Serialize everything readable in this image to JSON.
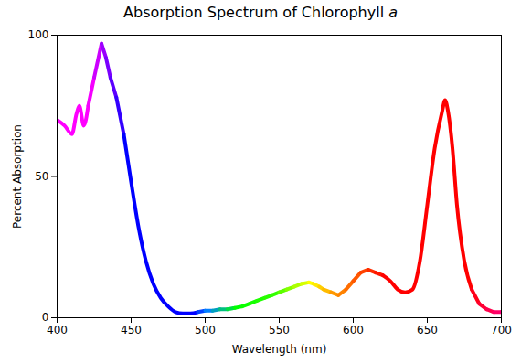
{
  "chart_data": {
    "type": "line",
    "title": "Absorption Spectrum of Chlorophyll a",
    "xlabel": "Wavelength (nm)",
    "ylabel": "Percent Absorption",
    "x": [
      400,
      405,
      410,
      413,
      415,
      418,
      421,
      425,
      430,
      433,
      436,
      440,
      445,
      450,
      455,
      460,
      465,
      470,
      475,
      480,
      485,
      490,
      495,
      500,
      505,
      510,
      515,
      520,
      525,
      530,
      535,
      540,
      545,
      550,
      555,
      560,
      565,
      570,
      573,
      577,
      580,
      585,
      590,
      595,
      600,
      605,
      610,
      615,
      620,
      625,
      630,
      635,
      640,
      645,
      650,
      655,
      660,
      662,
      664,
      667,
      670,
      675,
      680,
      685,
      690,
      695,
      700
    ],
    "values": [
      70,
      68,
      65,
      72,
      75,
      68,
      75,
      85,
      97,
      92,
      85,
      78,
      65,
      48,
      32,
      20,
      12,
      7,
      4,
      2,
      1.5,
      1.5,
      2,
      2.5,
      2.5,
      3,
      3,
      3.5,
      4,
      5,
      6,
      7,
      8,
      9,
      10,
      11,
      12,
      12.5,
      12,
      11,
      10,
      9,
      8,
      10,
      13,
      16,
      17,
      16,
      15,
      13,
      10,
      9,
      10,
      20,
      40,
      60,
      73,
      77,
      73,
      60,
      40,
      20,
      10,
      5,
      3,
      2,
      2
    ],
    "colors": [
      "#ff00ff",
      "#ff00ff",
      "#ff00ff",
      "#ff00ff",
      "#ff00ff",
      "#ff00ff",
      "#f500ff",
      "#cc00ff",
      "#9900ff",
      "#7a00ff",
      "#5c00ff",
      "#3300ff",
      "#0000ff",
      "#0000ff",
      "#0000ff",
      "#0000ff",
      "#0000ff",
      "#0000ff",
      "#0000ff",
      "#0000ff",
      "#0000ff",
      "#0000ff",
      "#0040ff",
      "#0080ff",
      "#009fbf",
      "#00bf80",
      "#00df40",
      "#00ff00",
      "#0aff00",
      "#14ff00",
      "#1fff00",
      "#29ff00",
      "#33ff00",
      "#5cff00",
      "#85ff00",
      "#adff00",
      "#d6ff00",
      "#ffff00",
      "#ffeb00",
      "#ffcf00",
      "#ffbb00",
      "#ff9900",
      "#ff8300",
      "#ff6d00",
      "#ff5700",
      "#ff4200",
      "#ff2c00",
      "#ff1600",
      "#ff0000",
      "#ff0000",
      "#ff0000",
      "#ff0000",
      "#ff0000",
      "#ff0000",
      "#ff0000",
      "#ff0000",
      "#ff0000",
      "#ff0000",
      "#ff0000",
      "#ff0000",
      "#ff0000",
      "#ff0000",
      "#ff001a",
      "#ff0033",
      "#ff004d",
      "#ff0066",
      "#ff0080"
    ],
    "xlim": [
      400,
      700
    ],
    "xticks": [
      400,
      450,
      500,
      550,
      600,
      650,
      700
    ],
    "ylim": [
      0,
      100
    ],
    "yticks": [
      0,
      50,
      100
    ],
    "grid": false
  }
}
